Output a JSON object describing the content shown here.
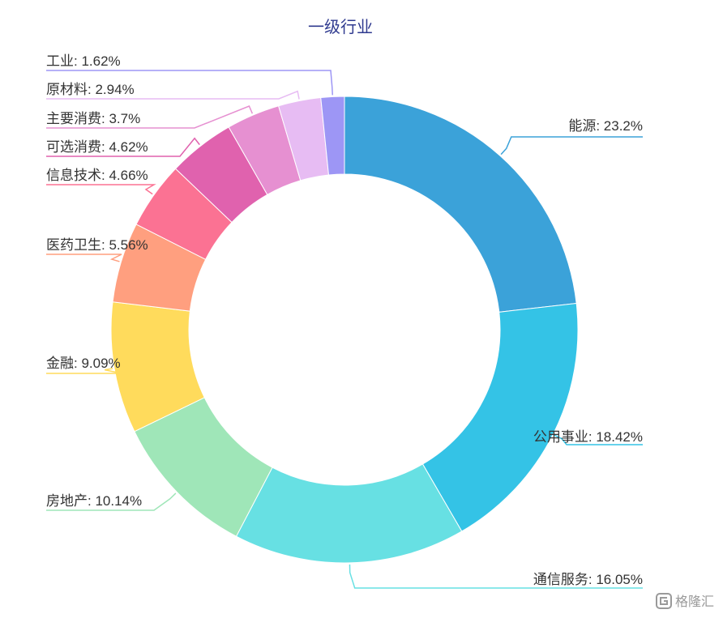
{
  "chart_data": {
    "type": "pie",
    "donut": true,
    "title": "一级行业",
    "start_angle_deg": 0,
    "direction": "clockwise",
    "slices": [
      {
        "name": "能源",
        "value": 23.2,
        "label": "能源: 23.2%",
        "color": "#3ba2d9",
        "label_side": "right"
      },
      {
        "name": "公用事业",
        "value": 18.42,
        "label": "公用事业: 18.42%",
        "color": "#34c3e6",
        "label_side": "right"
      },
      {
        "name": "通信服务",
        "value": 16.05,
        "label": "通信服务: 16.05%",
        "color": "#67e0e3",
        "label_side": "right"
      },
      {
        "name": "房地产",
        "value": 10.14,
        "label": "房地产: 10.14%",
        "color": "#9fe6b8",
        "label_side": "left"
      },
      {
        "name": "金融",
        "value": 9.09,
        "label": "金融: 9.09%",
        "color": "#ffdb5c",
        "label_side": "left"
      },
      {
        "name": "医药卫生",
        "value": 5.56,
        "label": "医药卫生: 5.56%",
        "color": "#ff9f7f",
        "label_side": "left"
      },
      {
        "name": "信息技术",
        "value": 4.66,
        "label": "信息技术: 4.66%",
        "color": "#fb7293",
        "label_side": "left"
      },
      {
        "name": "可选消费",
        "value": 4.62,
        "label": "可选消费: 4.62%",
        "color": "#e062ae",
        "label_side": "left"
      },
      {
        "name": "主要消费",
        "value": 3.7,
        "label": "主要消费: 3.7%",
        "color": "#e690d1",
        "label_side": "left"
      },
      {
        "name": "原材料",
        "value": 2.94,
        "label": "原材料: 2.94%",
        "color": "#e7bcf3",
        "label_side": "left"
      },
      {
        "name": "工业",
        "value": 1.62,
        "label": "工业: 1.62%",
        "color": "#9d96f5",
        "label_side": "left"
      }
    ]
  },
  "watermark": {
    "text": "格隆汇",
    "icon": "gelonghui-logo-icon",
    "color": "#9a9a9a"
  }
}
